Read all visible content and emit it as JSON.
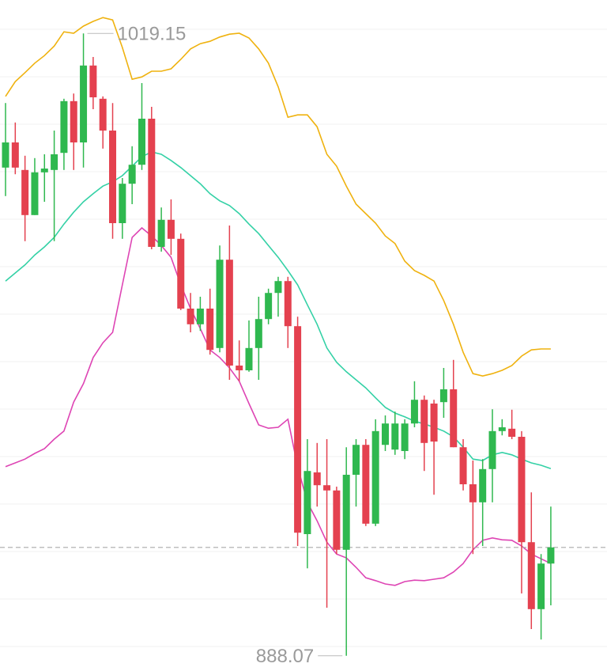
{
  "chart_data": {
    "type": "candlestick",
    "ylim": [
      884.87,
      1026.2
    ],
    "grid": true,
    "candles": {
      "up_color": "#2fb84f",
      "down_color": "#e4414f",
      "open": [
        990.9,
        996.2,
        990.4,
        980.9,
        989.9,
        990.4,
        994.0,
        1004.9,
        996.2,
        1012.4,
        1005.4,
        998.7,
        979.2,
        987.5,
        991.5,
        1001.2,
        974.2,
        979.9,
        975.9,
        961.2,
        957.9,
        961.2,
        952.9,
        971.5,
        949.2,
        948.2,
        952.9,
        959.0,
        964.5,
        967.0,
        957.5,
        913.7,
        926.7,
        924.0,
        922.9,
        910.4,
        926.2,
        932.5,
        915.9,
        932.5,
        931.5,
        931.2,
        937.0,
        942.0,
        941.2,
        941.5,
        944.2,
        932.0,
        924.2,
        920.4,
        927.4,
        935.4,
        935.9,
        934.2,
        912.0,
        897.9,
        907.5
      ],
      "high": [
        1004.5,
        1000.4,
        993.4,
        992.9,
        993.7,
        998.7,
        1005.4,
        1006.5,
        1019.15,
        1014.2,
        1005.9,
        1004.5,
        988.7,
        995.4,
        1008.7,
        1003.7,
        982.5,
        984.2,
        977.0,
        964.5,
        963.7,
        965.4,
        974.5,
        978.7,
        954.5,
        958.7,
        963.7,
        965.4,
        967.9,
        967.9,
        959.5,
        933.7,
        932.9,
        933.7,
        923.7,
        932.0,
        933.7,
        933.7,
        937.9,
        938.7,
        939.5,
        937.9,
        945.9,
        942.9,
        942.0,
        948.7,
        950.4,
        933.7,
        929.2,
        929.5,
        940.0,
        937.9,
        939.9,
        935.4,
        922.5,
        909.5,
        919.5
      ],
      "low": [
        984.9,
        989.5,
        975.4,
        980.9,
        983.7,
        975.4,
        990.4,
        990.4,
        990.9,
        1003.2,
        994.9,
        975.9,
        975.9,
        983.2,
        990.4,
        973.7,
        973.2,
        972.5,
        960.9,
        956.2,
        956.5,
        951.5,
        952.0,
        946.2,
        945.9,
        947.9,
        946.2,
        957.9,
        959.5,
        952.9,
        911.2,
        906.5,
        919.5,
        898.2,
        909.5,
        888.07,
        919.5,
        915.4,
        915.4,
        931.2,
        930.4,
        929.5,
        936.2,
        927.0,
        922.0,
        938.2,
        932.0,
        922.9,
        909.5,
        911.2,
        920.4,
        934.5,
        933.7,
        901.2,
        893.7,
        891.5,
        898.7
      ],
      "close": [
        996.2,
        990.9,
        980.9,
        989.9,
        990.7,
        993.7,
        1004.9,
        996.2,
        1012.4,
        1005.7,
        998.7,
        979.2,
        987.5,
        991.5,
        1001.2,
        974.2,
        979.9,
        975.9,
        961.2,
        957.9,
        961.2,
        952.5,
        971.5,
        949.2,
        948.2,
        952.9,
        959.0,
        964.5,
        967.0,
        957.5,
        914.0,
        927.0,
        924.0,
        922.9,
        910.4,
        926.2,
        932.5,
        915.9,
        935.4,
        937.0,
        937.0,
        937.0,
        942.0,
        932.9,
        933.2,
        944.2,
        932.0,
        924.2,
        920.4,
        927.4,
        935.4,
        936.2,
        934.2,
        912.0,
        897.9,
        907.5,
        910.9
      ]
    },
    "lines": [
      {
        "color": "#efb20f",
        "values": [
          1005.9,
          1009.0,
          1010.9,
          1012.9,
          1014.5,
          1016.5,
          1019.5,
          1019.2,
          1020.7,
          1021.7,
          1022.5,
          1022.0,
          1016.2,
          1009.5,
          1010.0,
          1011.2,
          1011.2,
          1011.7,
          1013.7,
          1015.9,
          1017.0,
          1017.5,
          1018.4,
          1019.0,
          1019.2,
          1018.2,
          1015.9,
          1012.9,
          1007.9,
          1001.5,
          1002.0,
          1002.0,
          999.5,
          993.7,
          991.2,
          987.0,
          983.2,
          981.2,
          979.2,
          976.5,
          974.9,
          971.2,
          969.2,
          968.2,
          967.0,
          962.9,
          957.9,
          952.0,
          947.5,
          947.0,
          947.5,
          948.2,
          949.2,
          951.2,
          952.5,
          952.7,
          952.7
        ]
      },
      {
        "color": "#34d1a6",
        "values": [
          967.0,
          968.7,
          970.4,
          972.5,
          974.2,
          976.2,
          979.0,
          981.5,
          983.7,
          985.4,
          987.0,
          987.9,
          989.2,
          991.2,
          993.2,
          994.2,
          993.7,
          992.4,
          990.9,
          989.2,
          987.5,
          985.4,
          983.9,
          982.9,
          981.2,
          979.0,
          977.0,
          974.5,
          972.0,
          969.2,
          966.2,
          962.0,
          957.9,
          952.9,
          949.9,
          947.9,
          946.2,
          944.5,
          942.4,
          940.4,
          939.2,
          938.4,
          937.5,
          936.9,
          936.2,
          935.4,
          934.2,
          932.0,
          929.5,
          929.2,
          930.4,
          930.9,
          930.4,
          929.5,
          928.7,
          928.2,
          927.5
        ]
      },
      {
        "color": "#de45b4",
        "values": [
          927.9,
          928.7,
          929.5,
          930.7,
          931.7,
          933.7,
          935.4,
          941.5,
          945.4,
          950.9,
          954.0,
          956.2,
          966.2,
          976.2,
          978.2,
          976.5,
          974.5,
          972.0,
          966.2,
          961.2,
          957.0,
          952.5,
          950.9,
          948.7,
          945.9,
          941.2,
          936.7,
          936.0,
          936.2,
          937.9,
          927.9,
          920.4,
          916.5,
          912.0,
          909.5,
          908.7,
          906.7,
          904.5,
          903.9,
          903.2,
          902.9,
          903.7,
          904.0,
          903.9,
          904.2,
          904.5,
          905.7,
          907.5,
          910.4,
          912.4,
          912.9,
          912.5,
          912.4,
          911.2,
          909.5,
          908.5,
          907.5
        ]
      }
    ],
    "high_marker": 1019.15,
    "low_marker": 888.07
  }
}
